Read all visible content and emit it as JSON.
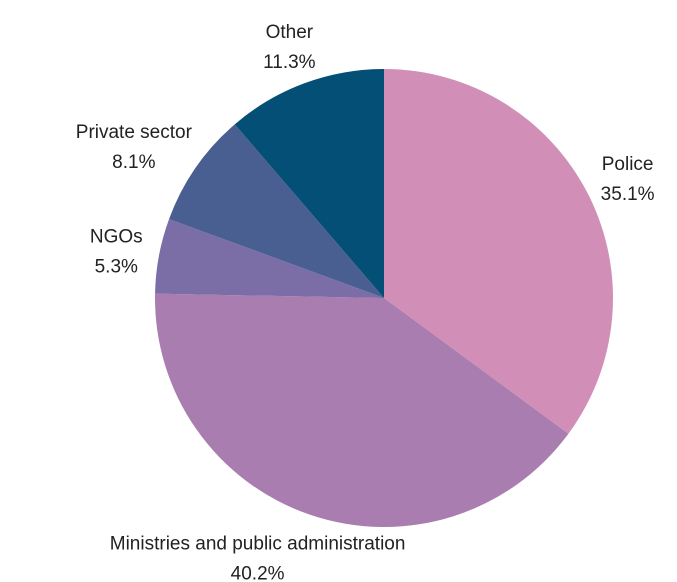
{
  "chart_data": {
    "type": "pie",
    "categories": [
      "Police",
      "Ministries and public administration",
      "NGOs",
      "Private sector",
      "Other"
    ],
    "values": [
      35.1,
      40.2,
      5.3,
      8.1,
      11.3
    ],
    "value_labels": [
      "35.1%",
      "40.2%",
      "5.3%",
      "8.1%",
      "11.3%"
    ],
    "colors": [
      "#d18fb7",
      "#a97daf",
      "#7b6ea6",
      "#4a5f91",
      "#034f75"
    ]
  }
}
